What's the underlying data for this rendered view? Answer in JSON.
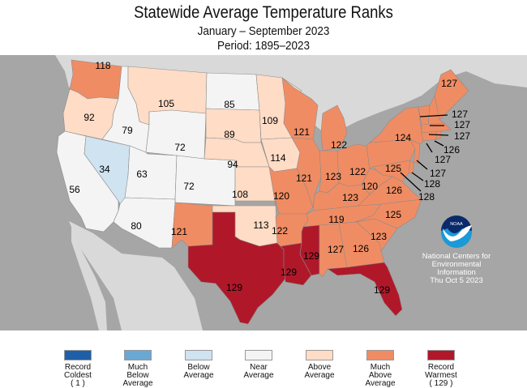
{
  "header": {
    "title": "Statewide Average Temperature Ranks",
    "subtitle": "January – September 2023",
    "period": "Period: 1895–2023"
  },
  "colors": {
    "record_coldest": "#1f5fa8",
    "much_below": "#6aa8d4",
    "below": "#cfe3f1",
    "near": "#f4f4f4",
    "above": "#ffdcc6",
    "much_above": "#f08c63",
    "record_warmest": "#b0182a",
    "ocean": "#a6a6a6",
    "land": "#d9d9d9"
  },
  "states": [
    {
      "id": "WA",
      "rank": "118",
      "cat": "much_above"
    },
    {
      "id": "OR",
      "rank": "92",
      "cat": "above"
    },
    {
      "id": "CA",
      "rank": "56",
      "cat": "near"
    },
    {
      "id": "NV",
      "rank": "34",
      "cat": "below"
    },
    {
      "id": "ID",
      "rank": "79",
      "cat": "near"
    },
    {
      "id": "MT",
      "rank": "105",
      "cat": "above"
    },
    {
      "id": "WY",
      "rank": "72",
      "cat": "near"
    },
    {
      "id": "UT",
      "rank": "63",
      "cat": "near"
    },
    {
      "id": "CO",
      "rank": "72",
      "cat": "near"
    },
    {
      "id": "AZ",
      "rank": "80",
      "cat": "near"
    },
    {
      "id": "NM",
      "rank": "121",
      "cat": "much_above"
    },
    {
      "id": "ND",
      "rank": "85",
      "cat": "near"
    },
    {
      "id": "SD",
      "rank": "89",
      "cat": "above"
    },
    {
      "id": "NE",
      "rank": "94",
      "cat": "above"
    },
    {
      "id": "KS",
      "rank": "108",
      "cat": "above"
    },
    {
      "id": "OK",
      "rank": "113",
      "cat": "above"
    },
    {
      "id": "TX",
      "rank": "129",
      "cat": "record_warmest"
    },
    {
      "id": "MN",
      "rank": "109",
      "cat": "above"
    },
    {
      "id": "IA",
      "rank": "114",
      "cat": "above"
    },
    {
      "id": "MO",
      "rank": "120",
      "cat": "much_above"
    },
    {
      "id": "AR",
      "rank": "122",
      "cat": "much_above"
    },
    {
      "id": "LA",
      "rank": "129",
      "cat": "record_warmest"
    },
    {
      "id": "WI",
      "rank": "121",
      "cat": "much_above"
    },
    {
      "id": "IL",
      "rank": "121",
      "cat": "much_above"
    },
    {
      "id": "MI",
      "rank": "122",
      "cat": "much_above"
    },
    {
      "id": "IN",
      "rank": "123",
      "cat": "much_above"
    },
    {
      "id": "OH",
      "rank": "122",
      "cat": "much_above"
    },
    {
      "id": "KY",
      "rank": "123",
      "cat": "much_above"
    },
    {
      "id": "TN",
      "rank": "119",
      "cat": "much_above"
    },
    {
      "id": "MS",
      "rank": "129",
      "cat": "record_warmest"
    },
    {
      "id": "AL",
      "rank": "127",
      "cat": "much_above"
    },
    {
      "id": "GA",
      "rank": "126",
      "cat": "much_above"
    },
    {
      "id": "FL",
      "rank": "129",
      "cat": "record_warmest"
    },
    {
      "id": "SC",
      "rank": "123",
      "cat": "much_above"
    },
    {
      "id": "NC",
      "rank": "125",
      "cat": "much_above"
    },
    {
      "id": "VA",
      "rank": "126",
      "cat": "much_above"
    },
    {
      "id": "WV",
      "rank": "120",
      "cat": "much_above"
    },
    {
      "id": "PA",
      "rank": "125",
      "cat": "much_above"
    },
    {
      "id": "NY",
      "rank": "124",
      "cat": "much_above"
    },
    {
      "id": "ME",
      "rank": "127",
      "cat": "much_above"
    },
    {
      "id": "NH",
      "rank": "127",
      "cat": "much_above"
    },
    {
      "id": "VT",
      "rank": "127",
      "cat": "much_above"
    },
    {
      "id": "MA",
      "rank": "127",
      "cat": "much_above"
    },
    {
      "id": "RI",
      "rank": "126",
      "cat": "much_above"
    },
    {
      "id": "CT",
      "rank": "127",
      "cat": "much_above"
    },
    {
      "id": "NJ",
      "rank": "127",
      "cat": "much_above"
    },
    {
      "id": "DE",
      "rank": "128",
      "cat": "much_above"
    },
    {
      "id": "MD",
      "rank": "128",
      "cat": "much_above"
    }
  ],
  "credit": {
    "logo_text": "NOAA",
    "line1": "National Centers for",
    "line2": "Environmental",
    "line3": "Information",
    "date": "Thu Oct  5 2023"
  },
  "legend": [
    {
      "cat": "record_coldest",
      "lines": [
        "Record",
        "Coldest",
        "( 1 )"
      ]
    },
    {
      "cat": "much_below",
      "lines": [
        "Much",
        "Below",
        "Average"
      ]
    },
    {
      "cat": "below",
      "lines": [
        "Below",
        "Average",
        ""
      ]
    },
    {
      "cat": "near",
      "lines": [
        "Near",
        "Average",
        ""
      ]
    },
    {
      "cat": "above",
      "lines": [
        "Above",
        "Average",
        ""
      ]
    },
    {
      "cat": "much_above",
      "lines": [
        "Much",
        "Above",
        "Average"
      ]
    },
    {
      "cat": "record_warmest",
      "lines": [
        "Record",
        "Warmest",
        "( 129 )"
      ]
    }
  ]
}
